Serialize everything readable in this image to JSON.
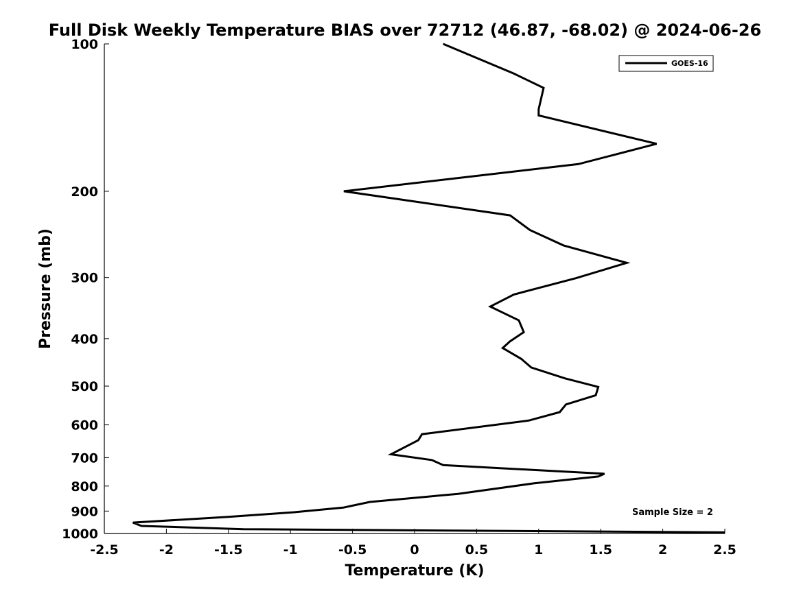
{
  "chart_data": {
    "type": "line",
    "title": "Full Disk Weekly Temperature BIAS over 72712 (46.87, -68.02) @ 2024-06-26",
    "xlabel": "Temperature (K)",
    "ylabel": "Pressure (mb)",
    "xlim": [
      -2.5,
      2.5
    ],
    "ylim": [
      100,
      1000
    ],
    "y_scale": "log",
    "y_reversed": true,
    "x_ticks": [
      "-2.5",
      "-2",
      "-1.5",
      "-1",
      "-0.5",
      "0",
      "0.5",
      "1",
      "1.5",
      "2",
      "2.5"
    ],
    "y_ticks": [
      "100",
      "200",
      "300",
      "400",
      "500",
      "600",
      "700",
      "800",
      "900",
      "1000"
    ],
    "grid": false,
    "legend_position": "top-right",
    "color": "#000000",
    "series": [
      {
        "name": "GOES-16",
        "points": [
          [
            0.23,
            100
          ],
          [
            0.8,
            115
          ],
          [
            1.04,
            123
          ],
          [
            1.0,
            136
          ],
          [
            1.0,
            140
          ],
          [
            1.95,
            160
          ],
          [
            1.32,
            176
          ],
          [
            -0.57,
            200
          ],
          [
            0.77,
            224
          ],
          [
            0.93,
            240
          ],
          [
            1.2,
            258
          ],
          [
            1.71,
            280
          ],
          [
            1.3,
            301
          ],
          [
            0.8,
            325
          ],
          [
            0.61,
            344
          ],
          [
            0.84,
            367
          ],
          [
            0.88,
            388
          ],
          [
            0.77,
            405
          ],
          [
            0.71,
            418
          ],
          [
            0.86,
            440
          ],
          [
            0.94,
            458
          ],
          [
            1.21,
            482
          ],
          [
            1.48,
            502
          ],
          [
            1.46,
            522
          ],
          [
            1.22,
            545
          ],
          [
            1.17,
            565
          ],
          [
            0.92,
            588
          ],
          [
            0.06,
            627
          ],
          [
            0.03,
            645
          ],
          [
            -0.19,
            689
          ],
          [
            0.14,
            708
          ],
          [
            0.23,
            725
          ],
          [
            1.53,
            755
          ],
          [
            1.48,
            765
          ],
          [
            0.96,
            790
          ],
          [
            0.35,
            830
          ],
          [
            -0.36,
            862
          ],
          [
            -0.57,
            885
          ],
          [
            -0.97,
            905
          ],
          [
            -1.5,
            925
          ],
          [
            -2.27,
            950
          ],
          [
            -2.2,
            965
          ],
          [
            -1.38,
            980
          ],
          [
            2.5,
            995
          ]
        ]
      }
    ],
    "annotation": "Sample Size = 2"
  }
}
